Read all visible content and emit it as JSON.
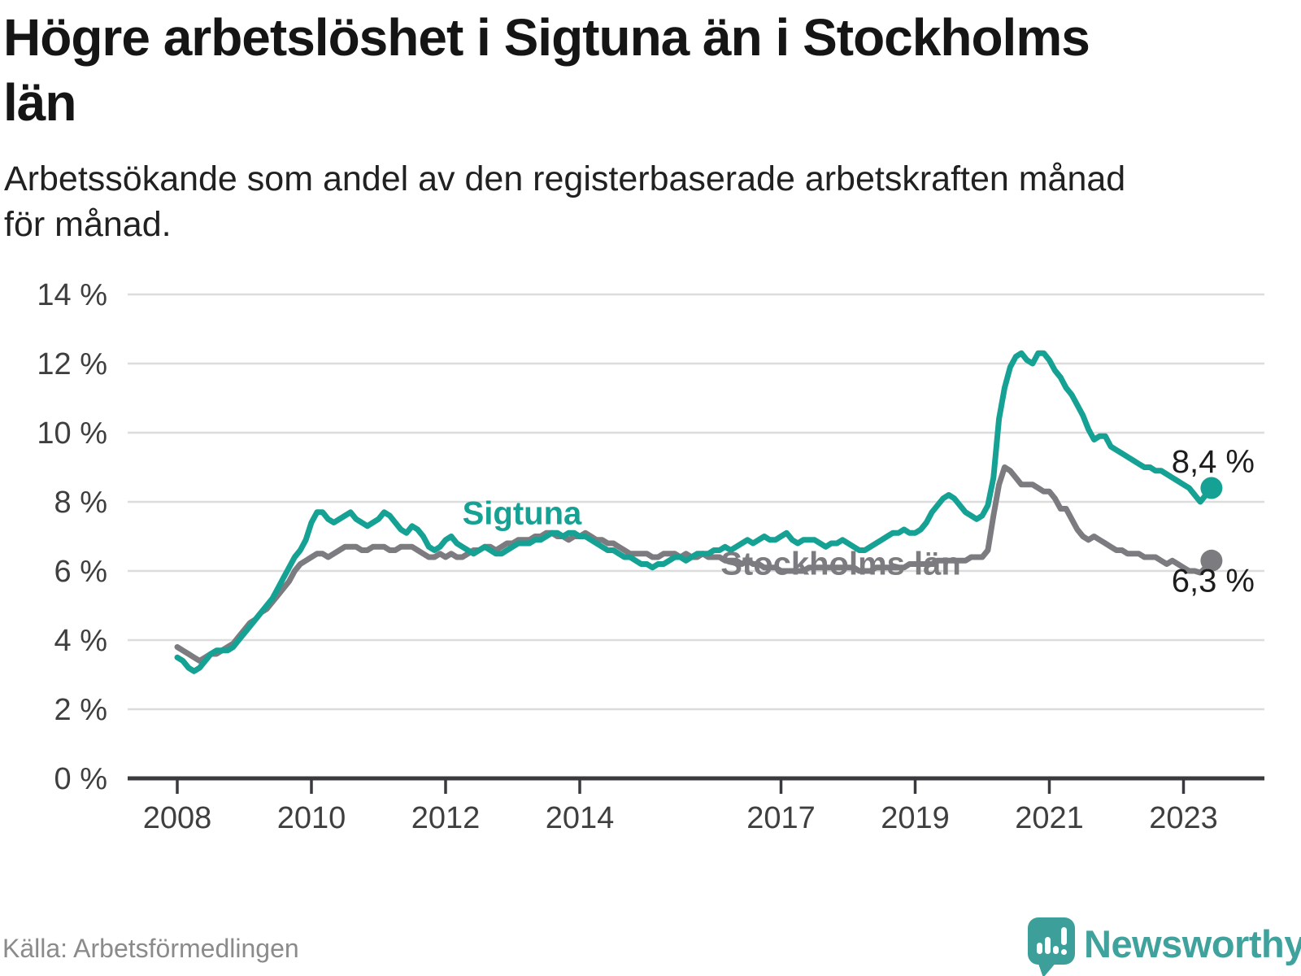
{
  "header": {
    "title_line1": "Högre arbetslöshet i Sigtuna än i Stockholms",
    "title_line2": "län",
    "subtitle_line1": "Arbetssökande som andel av den registerbaserade arbetskraften månad",
    "subtitle_line2": "för månad."
  },
  "footer": {
    "source": "Källa: Arbetsförmedlingen",
    "brand": "Newsworthy"
  },
  "colors": {
    "sigtuna": "#15a294",
    "stockholm": "#7c7c80",
    "grid": "#dcdcdc",
    "axis": "#3a3a3e",
    "tick_text": "#3f3f3f",
    "value_label": "#1d1d1d",
    "logo_bubble": "#3d9f99",
    "logo_text": "#3fa29c"
  },
  "chart_data": {
    "type": "line",
    "title": "Högre arbetslöshet i Sigtuna än i Stockholms län",
    "subtitle": "Arbetssökande som andel av den registerbaserade arbetskraften månad för månad.",
    "source": "Arbetsförmedlingen",
    "unit": "%",
    "frequency": "monthly",
    "x_start": {
      "year": 2008,
      "month": 1
    },
    "x_end": {
      "year": 2023,
      "month": 6
    },
    "ylim": [
      0,
      14
    ],
    "grid": true,
    "yticks": [
      {
        "value": 0,
        "label": "0 %"
      },
      {
        "value": 2,
        "label": "2 %"
      },
      {
        "value": 4,
        "label": "4 %"
      },
      {
        "value": 6,
        "label": "6 %"
      },
      {
        "value": 8,
        "label": "8 %"
      },
      {
        "value": 10,
        "label": "10 %"
      },
      {
        "value": 12,
        "label": "12 %"
      },
      {
        "value": 14,
        "label": "14 %"
      }
    ],
    "xticks": [
      {
        "value": 2008,
        "label": "2008"
      },
      {
        "value": 2010,
        "label": "2010"
      },
      {
        "value": 2012,
        "label": "2012"
      },
      {
        "value": 2014,
        "label": "2014"
      },
      {
        "value": 2017,
        "label": "2017"
      },
      {
        "value": 2019,
        "label": "2019"
      },
      {
        "value": 2021,
        "label": "2021"
      },
      {
        "value": 2023,
        "label": "2023"
      }
    ],
    "series": [
      {
        "name": "Sigtuna",
        "color": "#15a294",
        "label": {
          "text": "Sigtuna",
          "x_year": 2012.25,
          "y_pct": 7.35
        },
        "end_label": {
          "text": "8,4 %",
          "y_pct": 8.85
        },
        "end_value": 8.4,
        "values": [
          3.5,
          3.4,
          3.2,
          3.1,
          3.2,
          3.4,
          3.6,
          3.7,
          3.7,
          3.7,
          3.8,
          4.0,
          4.2,
          4.4,
          4.6,
          4.8,
          5.0,
          5.2,
          5.5,
          5.8,
          6.1,
          6.4,
          6.6,
          6.9,
          7.4,
          7.7,
          7.7,
          7.5,
          7.4,
          7.5,
          7.6,
          7.7,
          7.5,
          7.4,
          7.3,
          7.4,
          7.5,
          7.7,
          7.6,
          7.4,
          7.2,
          7.1,
          7.3,
          7.2,
          7.0,
          6.7,
          6.6,
          6.7,
          6.9,
          7.0,
          6.8,
          6.7,
          6.6,
          6.5,
          6.6,
          6.7,
          6.6,
          6.5,
          6.5,
          6.6,
          6.7,
          6.8,
          6.8,
          6.8,
          6.9,
          6.9,
          7.0,
          7.1,
          7.1,
          7.0,
          7.1,
          7.1,
          7.0,
          7.0,
          6.9,
          6.8,
          6.7,
          6.6,
          6.6,
          6.5,
          6.4,
          6.4,
          6.3,
          6.2,
          6.2,
          6.1,
          6.2,
          6.2,
          6.3,
          6.4,
          6.4,
          6.3,
          6.4,
          6.5,
          6.5,
          6.5,
          6.6,
          6.6,
          6.7,
          6.6,
          6.7,
          6.8,
          6.9,
          6.8,
          6.9,
          7.0,
          6.9,
          6.9,
          7.0,
          7.1,
          6.9,
          6.8,
          6.9,
          6.9,
          6.9,
          6.8,
          6.7,
          6.8,
          6.8,
          6.9,
          6.8,
          6.7,
          6.6,
          6.6,
          6.7,
          6.8,
          6.9,
          7.0,
          7.1,
          7.1,
          7.2,
          7.1,
          7.1,
          7.2,
          7.4,
          7.7,
          7.9,
          8.1,
          8.2,
          8.1,
          7.9,
          7.7,
          7.6,
          7.5,
          7.6,
          7.9,
          8.7,
          10.4,
          11.3,
          11.9,
          12.2,
          12.3,
          12.1,
          12.0,
          12.3,
          12.3,
          12.1,
          11.8,
          11.6,
          11.3,
          11.1,
          10.8,
          10.5,
          10.1,
          9.8,
          9.9,
          9.9,
          9.6,
          9.5,
          9.4,
          9.3,
          9.2,
          9.1,
          9.0,
          9.0,
          8.9,
          8.9,
          8.8,
          8.7,
          8.6,
          8.5,
          8.4,
          8.2,
          8.0,
          8.2,
          8.4
        ]
      },
      {
        "name": "Stockholms län",
        "color": "#7c7c80",
        "label": {
          "text": "Stockholms län",
          "x_year": 2016.1,
          "y_pct": 5.9
        },
        "end_label": {
          "text": "6,3 %",
          "y_pct": 5.4
        },
        "end_value": 6.3,
        "values": [
          3.8,
          3.7,
          3.6,
          3.5,
          3.4,
          3.5,
          3.6,
          3.6,
          3.7,
          3.8,
          3.9,
          4.1,
          4.3,
          4.5,
          4.6,
          4.8,
          4.9,
          5.1,
          5.3,
          5.5,
          5.7,
          6.0,
          6.2,
          6.3,
          6.4,
          6.5,
          6.5,
          6.4,
          6.5,
          6.6,
          6.7,
          6.7,
          6.7,
          6.6,
          6.6,
          6.7,
          6.7,
          6.7,
          6.6,
          6.6,
          6.7,
          6.7,
          6.7,
          6.6,
          6.5,
          6.4,
          6.4,
          6.5,
          6.4,
          6.5,
          6.4,
          6.4,
          6.5,
          6.6,
          6.6,
          6.7,
          6.7,
          6.6,
          6.7,
          6.8,
          6.8,
          6.9,
          6.9,
          6.9,
          7.0,
          7.0,
          7.1,
          7.1,
          7.0,
          7.0,
          6.9,
          7.0,
          7.0,
          7.1,
          7.0,
          6.9,
          6.9,
          6.8,
          6.8,
          6.7,
          6.6,
          6.5,
          6.5,
          6.5,
          6.5,
          6.4,
          6.4,
          6.5,
          6.5,
          6.5,
          6.4,
          6.5,
          6.4,
          6.4,
          6.5,
          6.4,
          6.4,
          6.4,
          6.3,
          6.3,
          6.3,
          6.2,
          6.3,
          6.2,
          6.2,
          6.1,
          6.1,
          6.1,
          6.0,
          6.0,
          6.0,
          6.0,
          6.0,
          6.1,
          6.1,
          6.1,
          6.1,
          6.1,
          6.1,
          6.1,
          6.1,
          6.1,
          6.0,
          6.0,
          6.0,
          6.1,
          6.1,
          6.1,
          6.1,
          6.1,
          6.1,
          6.2,
          6.2,
          6.2,
          6.2,
          6.2,
          6.3,
          6.3,
          6.3,
          6.3,
          6.3,
          6.3,
          6.4,
          6.4,
          6.4,
          6.6,
          7.6,
          8.5,
          9.0,
          8.9,
          8.7,
          8.5,
          8.5,
          8.5,
          8.4,
          8.3,
          8.3,
          8.1,
          7.8,
          7.8,
          7.5,
          7.2,
          7.0,
          6.9,
          7.0,
          6.9,
          6.8,
          6.7,
          6.6,
          6.6,
          6.5,
          6.5,
          6.5,
          6.4,
          6.4,
          6.4,
          6.3,
          6.2,
          6.3,
          6.2,
          6.1,
          6.0,
          6.0,
          5.95,
          6.1,
          6.3
        ]
      }
    ]
  }
}
